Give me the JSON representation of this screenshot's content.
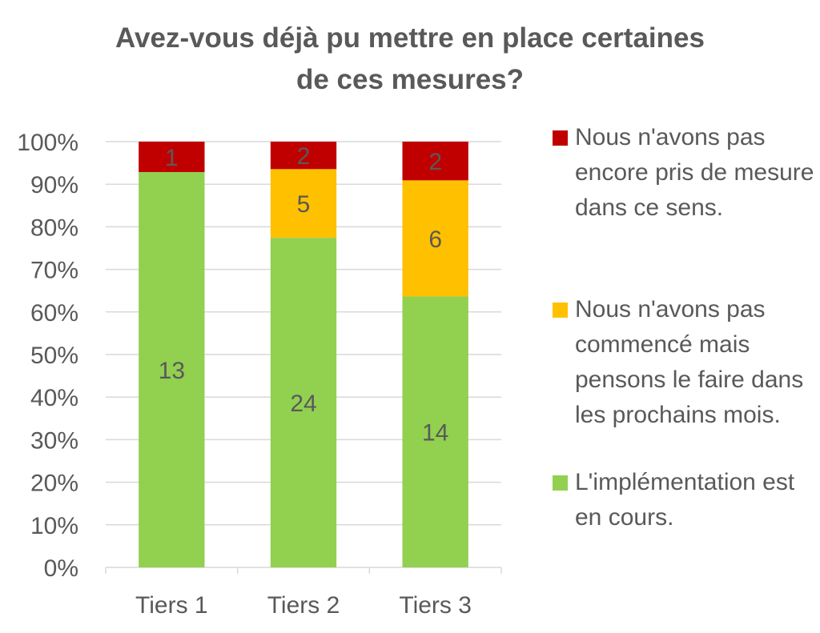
{
  "chart_data": {
    "type": "bar",
    "stacked": "percent",
    "title_lines": [
      "Avez-vous déjà pu mettre en place certaines",
      "de ces mesures?"
    ],
    "categories": [
      "Tiers 1",
      "Tiers 2",
      "Tiers 3"
    ],
    "series": [
      {
        "name": "L'implémentation est en cours.",
        "color": "#92d050",
        "values": [
          13,
          24,
          14
        ]
      },
      {
        "name": "Nous n'avons pas commencé mais pensons le faire dans les prochains mois.",
        "color": "#ffc000",
        "values": [
          0,
          5,
          6
        ]
      },
      {
        "name": "Nous n'avons pas encore pris de mesure dans ce sens.",
        "color": "#c00000",
        "values": [
          1,
          2,
          2
        ]
      }
    ],
    "y_ticks": [
      "0%",
      "10%",
      "20%",
      "30%",
      "40%",
      "50%",
      "60%",
      "70%",
      "80%",
      "90%",
      "100%"
    ],
    "ylim": [
      0,
      100
    ],
    "grid": true,
    "legend_position": "right"
  }
}
